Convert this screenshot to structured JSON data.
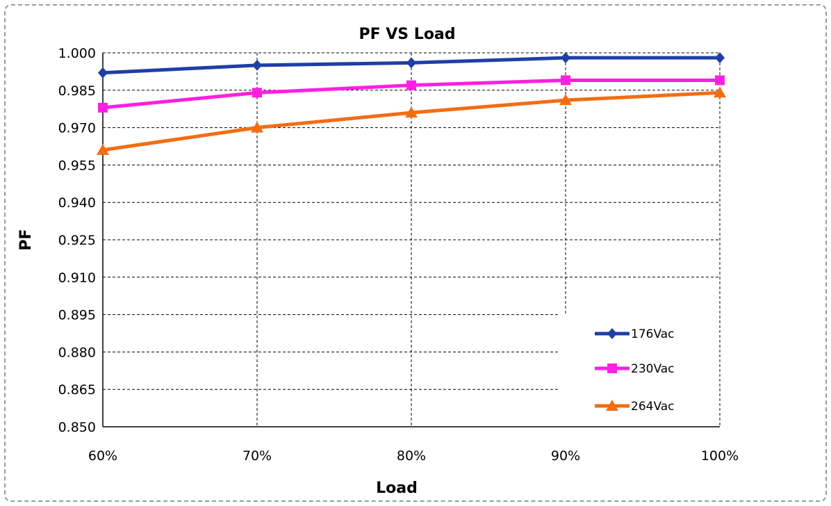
{
  "chart_data": {
    "type": "line",
    "title": "PF VS Load",
    "xlabel": "Load",
    "ylabel": "PF",
    "categories": [
      "60%",
      "70%",
      "80%",
      "90%",
      "100%"
    ],
    "yticks": [
      "0.850",
      "0.865",
      "0.880",
      "0.895",
      "0.910",
      "0.925",
      "0.940",
      "0.955",
      "0.970",
      "0.985",
      "1.000"
    ],
    "ylim": [
      0.85,
      1.0
    ],
    "grid": true,
    "legend_position": "bottom-right",
    "series": [
      {
        "name": "176Vac",
        "values": [
          0.992,
          0.995,
          0.996,
          0.998,
          0.998
        ],
        "color": "#1f3ea6",
        "marker": "diamond"
      },
      {
        "name": "230Vac",
        "values": [
          0.978,
          0.984,
          0.987,
          0.989,
          0.989
        ],
        "color": "#ff1fe0",
        "marker": "square"
      },
      {
        "name": "264Vac",
        "values": [
          0.961,
          0.97,
          0.976,
          0.981,
          0.984
        ],
        "color": "#f26d12",
        "marker": "triangle"
      }
    ]
  }
}
